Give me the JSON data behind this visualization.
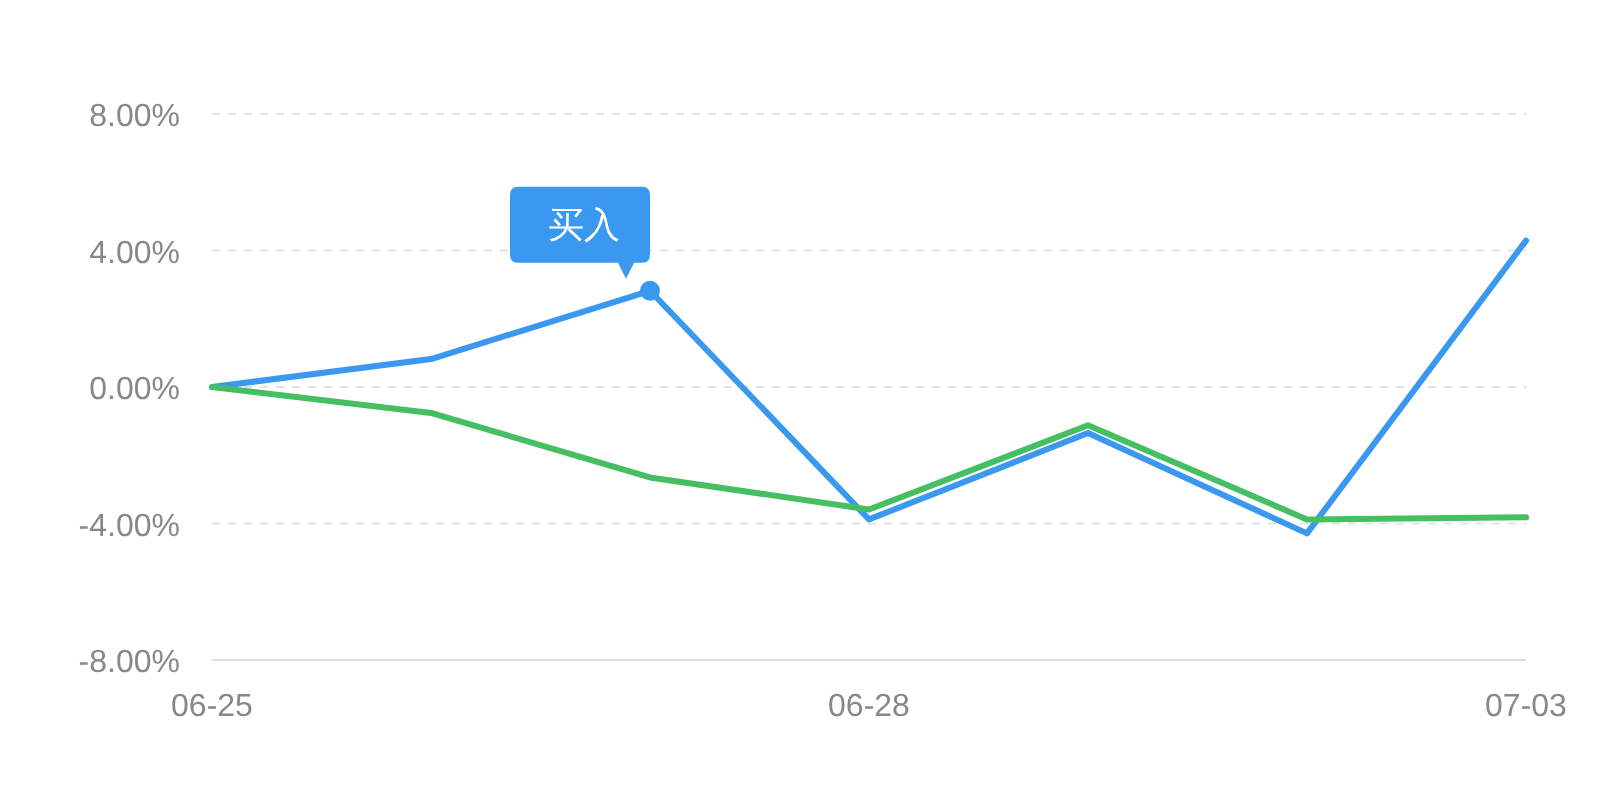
{
  "chart_data": {
    "type": "line",
    "categories": [
      "06-25",
      null,
      null,
      "06-28",
      null,
      null,
      "07-03"
    ],
    "series": [
      {
        "color": "#3a98f0",
        "values": [
          0,
          0.82,
          2.82,
          -3.88,
          -1.35,
          -4.29,
          4.29
        ]
      },
      {
        "color": "#45bf62",
        "values": [
          0,
          -0.76,
          -2.65,
          -3.59,
          -1.12,
          -3.88,
          -3.82
        ]
      }
    ],
    "ylim": [
      -8,
      8
    ],
    "yticks": [
      {
        "value": -8,
        "label": "-8.00%"
      },
      {
        "value": -4,
        "label": "-4.00%"
      },
      {
        "value": 0,
        "label": "0.00%"
      },
      {
        "value": 4,
        "label": "4.00%"
      },
      {
        "value": 8,
        "label": "8.00%"
      }
    ],
    "grid": "y",
    "annotations": [
      "买入"
    ]
  }
}
